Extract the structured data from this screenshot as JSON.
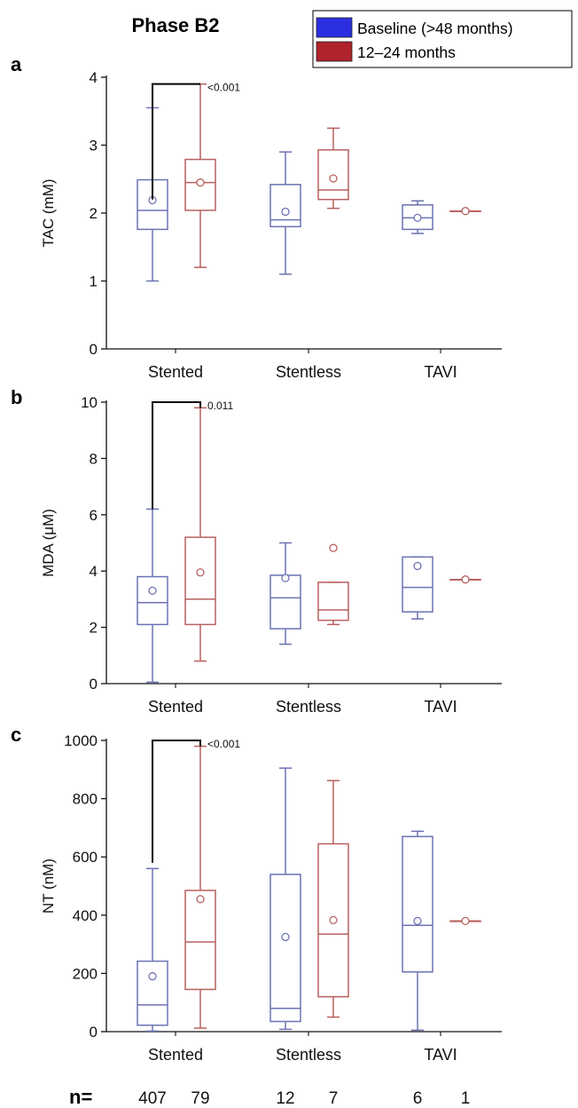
{
  "title": "Phase B2",
  "legend": {
    "placement": "top-right",
    "items": [
      {
        "label": "Baseline (>48 months)",
        "color": "#2b2fe0"
      },
      {
        "label": "12–24 months",
        "color": "#b0232c"
      }
    ]
  },
  "colors": {
    "baseline_box": "#6b72b3",
    "followup_box": "#b8605e",
    "bracket": "#000000"
  },
  "n_label": "n=",
  "chart_data": [
    {
      "panel": "a",
      "type": "box",
      "ylabel": "TAC (mM)",
      "ylim": [
        0,
        4
      ],
      "yticks": [
        "0",
        "1",
        "2",
        "3",
        "4"
      ],
      "categories": [
        "Stented",
        "Stentless",
        "TAVI"
      ],
      "series": [
        {
          "name": "Baseline (>48 months)",
          "boxes": [
            {
              "min": 1.0,
              "q1": 1.76,
              "median": 2.04,
              "q3": 2.49,
              "max": 3.55,
              "mean": 2.19
            },
            {
              "min": 1.1,
              "q1": 1.8,
              "median": 1.9,
              "q3": 2.42,
              "max": 2.9,
              "mean": 2.02
            },
            {
              "min": 1.7,
              "q1": 1.76,
              "median": 1.93,
              "q3": 2.12,
              "max": 2.18,
              "mean": 1.93
            }
          ]
        },
        {
          "name": "12–24 months",
          "boxes": [
            {
              "min": 1.2,
              "q1": 2.04,
              "median": 2.45,
              "q3": 2.79,
              "max": 3.9,
              "mean": 2.45
            },
            {
              "min": 2.07,
              "q1": 2.2,
              "median": 2.34,
              "q3": 2.93,
              "max": 3.25,
              "mean": 2.51
            },
            {
              "min": 2.03,
              "q1": 2.03,
              "median": 2.03,
              "q3": 2.03,
              "max": 2.03,
              "mean": 2.03
            }
          ]
        }
      ],
      "annotation": {
        "category": "Stented",
        "text": "<0.001",
        "y": 3.9,
        "from": 2.2,
        "to": 3.9
      }
    },
    {
      "panel": "b",
      "type": "box",
      "ylabel": "MDA (μM)",
      "ylim": [
        0,
        10
      ],
      "yticks": [
        "0",
        "2",
        "4",
        "6",
        "8",
        "10"
      ],
      "categories": [
        "Stented",
        "Stentless",
        "TAVI"
      ],
      "series": [
        {
          "name": "Baseline (>48 months)",
          "boxes": [
            {
              "min": 0.05,
              "q1": 2.1,
              "median": 2.88,
              "q3": 3.8,
              "max": 6.2,
              "mean": 3.3
            },
            {
              "min": 1.4,
              "q1": 1.95,
              "median": 3.05,
              "q3": 3.85,
              "max": 5.0,
              "mean": 3.75
            },
            {
              "min": 2.3,
              "q1": 2.55,
              "median": 3.42,
              "q3": 4.5,
              "max": 4.5,
              "mean": 4.18
            }
          ]
        },
        {
          "name": "12–24 months",
          "boxes": [
            {
              "min": 0.8,
              "q1": 2.1,
              "median": 3.0,
              "q3": 5.2,
              "max": 9.8,
              "mean": 3.95
            },
            {
              "min": 2.1,
              "q1": 2.25,
              "median": 2.62,
              "q3": 3.6,
              "max": 3.6,
              "mean": 4.82
            },
            {
              "min": 3.7,
              "q1": 3.7,
              "median": 3.7,
              "q3": 3.7,
              "max": 3.7,
              "mean": 3.7
            }
          ]
        }
      ],
      "annotation": {
        "category": "Stented",
        "text": "0.011",
        "y": 10,
        "from": 6.2,
        "to": 9.8
      }
    },
    {
      "panel": "c",
      "type": "box",
      "ylabel": "NT (nM)",
      "ylim": [
        0,
        1000
      ],
      "yticks": [
        "0",
        "200",
        "400",
        "600",
        "800",
        "1000"
      ],
      "categories": [
        "Stented",
        "Stentless",
        "TAVI"
      ],
      "series": [
        {
          "name": "Baseline (>48 months)",
          "boxes": [
            {
              "min": 2,
              "q1": 22,
              "median": 92,
              "q3": 242,
              "max": 560,
              "mean": 190
            },
            {
              "min": 8,
              "q1": 35,
              "median": 80,
              "q3": 540,
              "max": 905,
              "mean": 325
            },
            {
              "min": 5,
              "q1": 205,
              "median": 365,
              "q3": 670,
              "max": 688,
              "mean": 380
            }
          ]
        },
        {
          "name": "12–24 months",
          "boxes": [
            {
              "min": 12,
              "q1": 145,
              "median": 308,
              "q3": 485,
              "max": 980,
              "mean": 455
            },
            {
              "min": 50,
              "q1": 120,
              "median": 335,
              "q3": 645,
              "max": 862,
              "mean": 383
            },
            {
              "min": 380,
              "q1": 380,
              "median": 380,
              "q3": 380,
              "max": 380,
              "mean": 380
            }
          ]
        }
      ],
      "annotation": {
        "category": "Stented",
        "text": "<0.001",
        "y": 1000,
        "from": 580,
        "to": 980
      },
      "n_values": [
        [
          "407",
          "79"
        ],
        [
          "12",
          "7"
        ],
        [
          "6",
          "1"
        ]
      ]
    }
  ]
}
